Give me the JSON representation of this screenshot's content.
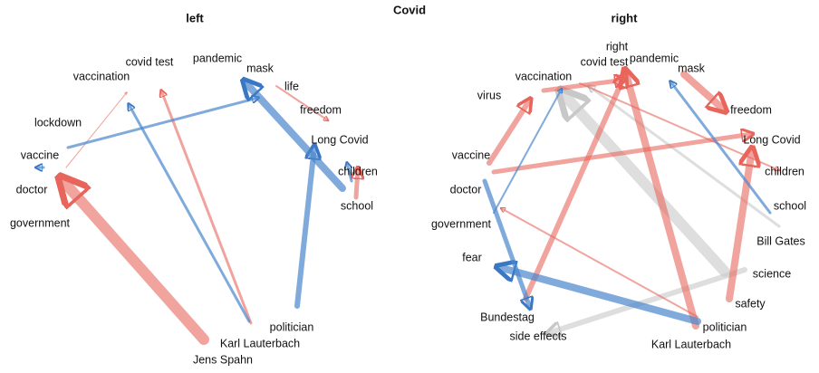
{
  "title": "Covid",
  "panels": [
    {
      "title": "left",
      "nodes": [
        "vaccination",
        "covid test",
        "pandemic",
        "mask",
        "life",
        "freedom",
        "lockdown",
        "Long Covid",
        "vaccine",
        "children",
        "doctor",
        "school",
        "government",
        "politician",
        "Karl Lauterbach",
        "Jens Spahn"
      ]
    },
    {
      "title": "right",
      "nodes": [
        "right",
        "covid test",
        "pandemic",
        "mask",
        "vaccination",
        "virus",
        "freedom",
        "Long Covid",
        "vaccine",
        "children",
        "doctor",
        "school",
        "government",
        "Bill Gates",
        "fear",
        "science",
        "safety",
        "Bundestag",
        "politician",
        "side effects",
        "Karl Lauterbach"
      ]
    }
  ]
}
